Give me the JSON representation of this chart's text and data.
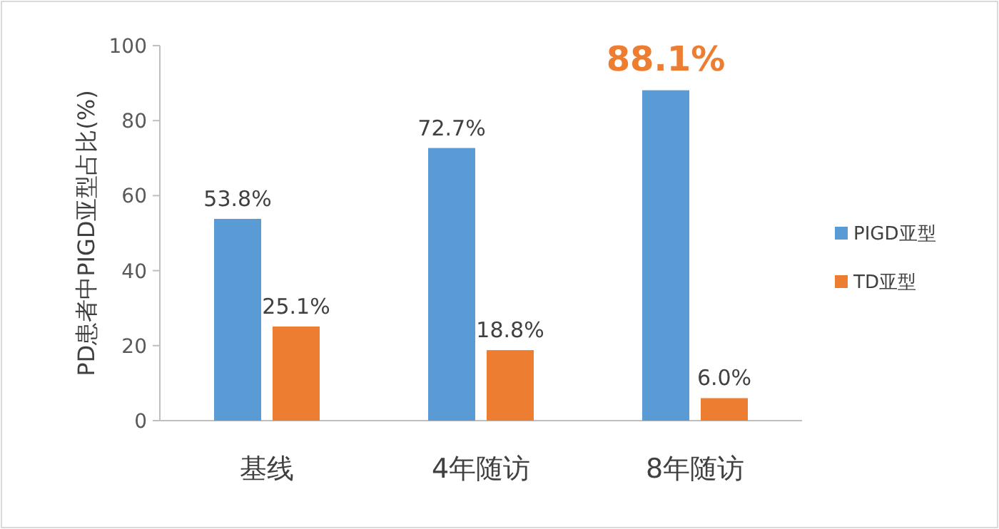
{
  "chart_data": {
    "type": "bar",
    "ylabel": "PD患者中PIGD亚型占比(%)",
    "categories": [
      "基线",
      "4年随访",
      "8年随访"
    ],
    "ylim": [
      0,
      100
    ],
    "yticks": [
      0,
      20,
      40,
      60,
      80,
      100
    ],
    "legend": "right",
    "series": [
      {
        "name": "PIGD亚型",
        "color": "#5b9bd5",
        "values": [
          53.8,
          72.7,
          88.1
        ],
        "value_labels": [
          "53.8%",
          "72.7%",
          "88.1%"
        ]
      },
      {
        "name": "TD亚型",
        "color": "#ed7d31",
        "values": [
          25.1,
          18.8,
          6.0
        ],
        "value_labels": [
          "25.1%",
          "18.8%",
          "6.0%"
        ]
      }
    ]
  }
}
